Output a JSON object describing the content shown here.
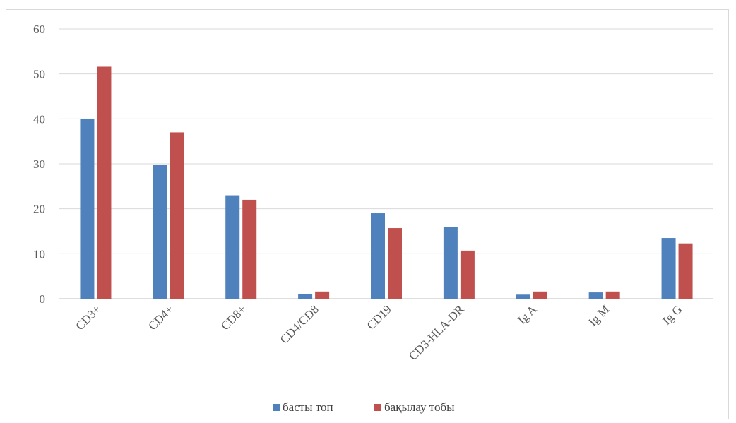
{
  "chart_data": {
    "type": "bar",
    "categories": [
      "CD3+",
      "CD4+",
      "CD8+",
      "CD4/CD8",
      "CD19",
      "CD3-HLA-DR",
      "Ig A",
      "Ig M",
      "Ig G"
    ],
    "series": [
      {
        "name": "басты топ",
        "color": "#4f81bd",
        "values": [
          40,
          29.7,
          23,
          1.1,
          19,
          15.9,
          0.9,
          1.4,
          13.5
        ]
      },
      {
        "name": "бақылау тобы",
        "color": "#c0504d",
        "values": [
          51.6,
          37,
          22,
          1.6,
          15.7,
          10.7,
          1.6,
          1.6,
          12.3
        ]
      }
    ],
    "yticks": [
      "0",
      "10",
      "20",
      "30",
      "40",
      "50",
      "60"
    ],
    "ylim": [
      0,
      60
    ],
    "grid": true,
    "legend": "bottom-center"
  }
}
